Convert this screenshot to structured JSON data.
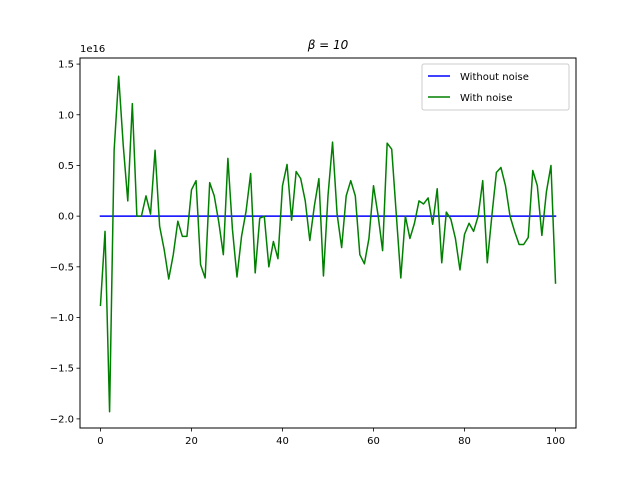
{
  "chart_data": {
    "type": "line",
    "title": "β = 10",
    "xlabel": "",
    "ylabel": "",
    "y_offset_label": "1e16",
    "xlim": [
      -4.5,
      104.5
    ],
    "ylim": [
      -2.09,
      1.56
    ],
    "x_ticks": [
      0,
      20,
      40,
      60,
      80,
      100
    ],
    "x_tick_labels": [
      "0",
      "20",
      "40",
      "60",
      "80",
      "100"
    ],
    "y_ticks": [
      -2.0,
      -1.5,
      -1.0,
      -0.5,
      0.0,
      0.5,
      1.0,
      1.5
    ],
    "y_tick_labels": [
      "−2.0",
      "−1.5",
      "−1.0",
      "−0.5",
      "0.0",
      "0.5",
      "1.0",
      "1.5"
    ],
    "grid": false,
    "legend_position": "upper right",
    "x": [
      0,
      1,
      2,
      3,
      4,
      5,
      6,
      7,
      8,
      9,
      10,
      11,
      12,
      13,
      14,
      15,
      16,
      17,
      18,
      19,
      20,
      21,
      22,
      23,
      24,
      25,
      26,
      27,
      28,
      29,
      30,
      31,
      32,
      33,
      34,
      35,
      36,
      37,
      38,
      39,
      40,
      41,
      42,
      43,
      44,
      45,
      46,
      47,
      48,
      49,
      50,
      51,
      52,
      53,
      54,
      55,
      56,
      57,
      58,
      59,
      60,
      61,
      62,
      63,
      64,
      65,
      66,
      67,
      68,
      69,
      70,
      71,
      72,
      73,
      74,
      75,
      76,
      77,
      78,
      79,
      80,
      81,
      82,
      83,
      84,
      85,
      86,
      87,
      88,
      89,
      90,
      91,
      92,
      93,
      94,
      95,
      96,
      97,
      98,
      99,
      100
    ],
    "series": [
      {
        "name": "Without noise",
        "color": "#0000ff",
        "values": [
          0,
          0,
          0,
          0,
          0,
          0,
          0,
          0,
          0,
          0,
          0,
          0,
          0,
          0,
          0,
          0,
          0,
          0,
          0,
          0,
          0,
          0,
          0,
          0,
          0,
          0,
          0,
          0,
          0,
          0,
          0,
          0,
          0,
          0,
          0,
          0,
          0,
          0,
          0,
          0,
          0,
          0,
          0,
          0,
          0,
          0,
          0,
          0,
          0,
          0,
          0,
          0,
          0,
          0,
          0,
          0,
          0,
          0,
          0,
          0,
          0,
          0,
          0,
          0,
          0,
          0,
          0,
          0,
          0,
          0,
          0,
          0,
          0,
          0,
          0,
          0,
          0,
          0,
          0,
          0,
          0,
          0,
          0,
          0,
          0,
          0,
          0,
          0,
          0,
          0,
          0,
          0,
          0,
          0,
          0,
          0,
          0,
          0,
          0,
          0,
          0
        ]
      },
      {
        "name": "With noise",
        "color": "#008000",
        "values": [
          -0.88,
          -0.15,
          -1.93,
          0.65,
          1.38,
          0.7,
          0.15,
          1.11,
          0.0,
          0.0,
          0.2,
          0.02,
          0.65,
          -0.1,
          -0.33,
          -0.62,
          -0.38,
          -0.05,
          -0.2,
          -0.2,
          0.26,
          0.35,
          -0.48,
          -0.61,
          0.33,
          0.2,
          -0.06,
          -0.38,
          0.57,
          -0.13,
          -0.6,
          -0.2,
          0.05,
          0.42,
          -0.56,
          -0.02,
          0.0,
          -0.5,
          -0.25,
          -0.42,
          0.3,
          0.51,
          -0.04,
          0.44,
          0.37,
          0.15,
          -0.24,
          0.1,
          0.37,
          -0.59,
          0.2,
          0.73,
          0.02,
          -0.31,
          0.2,
          0.35,
          0.2,
          -0.38,
          -0.47,
          -0.22,
          0.3,
          0.01,
          -0.34,
          0.72,
          0.66,
          0.02,
          -0.61,
          0.0,
          -0.22,
          -0.07,
          0.15,
          0.12,
          0.18,
          -0.08,
          0.27,
          -0.46,
          0.04,
          -0.03,
          -0.22,
          -0.53,
          -0.18,
          -0.07,
          -0.15,
          0.0,
          0.35,
          -0.46,
          0.0,
          0.43,
          0.48,
          0.3,
          0.0,
          -0.15,
          -0.28,
          -0.28,
          -0.21,
          0.45,
          0.3,
          -0.19,
          0.24,
          0.5,
          -0.66
        ]
      }
    ]
  }
}
